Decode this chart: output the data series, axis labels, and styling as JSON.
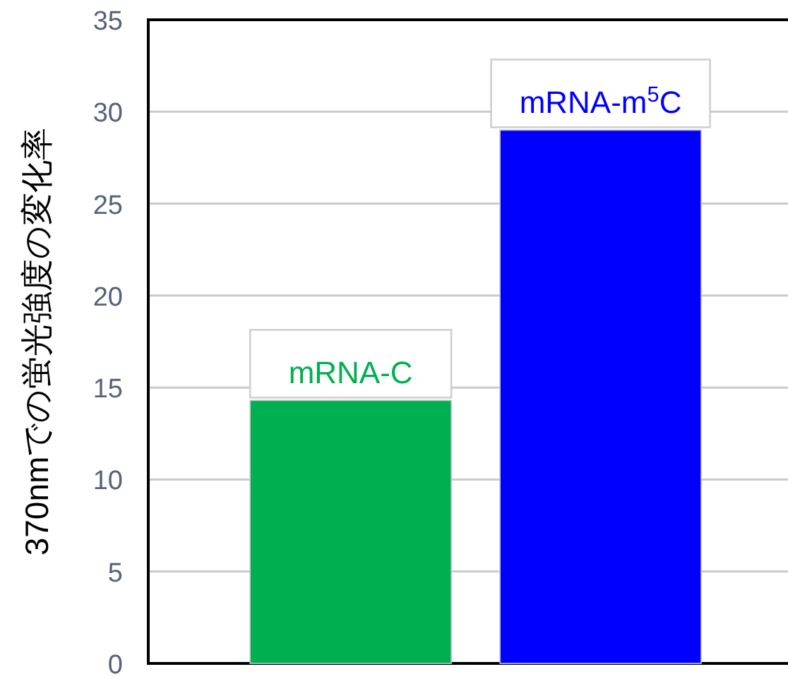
{
  "chart_data": {
    "type": "bar",
    "ylabel": "370nmでの蛍光強度の変化率",
    "categories": [
      "mRNA-C",
      "mRNA-m$^{5}$C"
    ],
    "values": [
      14.3,
      29.0
    ],
    "colors": [
      "#00b050",
      "#0000ff"
    ],
    "ylim": [
      0,
      35
    ],
    "yticks": [
      0,
      5,
      10,
      15,
      20,
      25,
      30,
      35
    ],
    "grid": "y"
  }
}
